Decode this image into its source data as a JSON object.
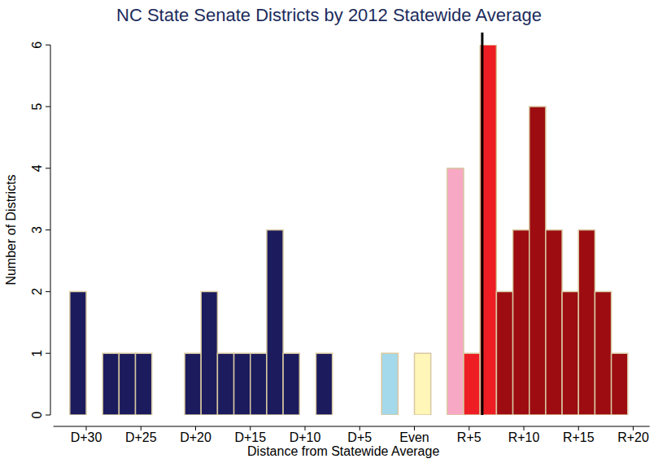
{
  "chart_data": {
    "type": "histogram",
    "title": "NC State Senate Districts by 2012 Statewide Average",
    "x_label": "Distance from Statewide Average",
    "y_label": "Number of Districts",
    "bins": [
      -31.5,
      -30,
      -28.5,
      -27,
      -25.5,
      -24,
      -22.5,
      -21,
      -19.5,
      -18,
      -16.5,
      -15,
      -13.5,
      -12,
      -10.5,
      -9,
      -7.5,
      -6,
      -4.5,
      -3,
      -1.5,
      0,
      1.5,
      3,
      4.5,
      6,
      7.5,
      9,
      10.5,
      12,
      13.5,
      15,
      16.5,
      18,
      19.5
    ],
    "values": [
      2,
      0,
      1,
      1,
      1,
      0,
      0,
      1,
      2,
      1,
      1,
      1,
      3,
      1,
      0,
      1,
      0,
      0,
      0,
      1,
      0,
      1,
      0,
      4,
      1,
      6,
      2,
      3,
      5,
      3,
      2,
      3,
      2,
      1
    ],
    "colors": [
      "#1b1b5e",
      "#1b1b5e",
      "#1b1b5e",
      "#1b1b5e",
      "#1b1b5e",
      "#1b1b5e",
      "#1b1b5e",
      "#1b1b5e",
      "#1b1b5e",
      "#1b1b5e",
      "#1b1b5e",
      "#1b1b5e",
      "#1b1b5e",
      "#1b1b5e",
      "#1b1b5e",
      "#1b1b5e",
      "#1b1b5e",
      "#1b1b5e",
      "#1b1b5e",
      "#a3d9ea",
      "#a3d9ea",
      "#fff6b8",
      "#f7a8c4",
      "#f7a8c4",
      "#ee1d24",
      "#ee1d24",
      "#9c0c10",
      "#9c0c10",
      "#9c0c10",
      "#9c0c10",
      "#9c0c10",
      "#9c0c10",
      "#9c0c10",
      "#9c0c10"
    ],
    "reference_line": 6.2,
    "xlim": [
      -33,
      21.5
    ],
    "xticks": [
      {
        "value": -30,
        "label": "D+30"
      },
      {
        "value": -25,
        "label": "D+25"
      },
      {
        "value": -20,
        "label": "D+20"
      },
      {
        "value": -15,
        "label": "D+15"
      },
      {
        "value": -10,
        "label": "D+10"
      },
      {
        "value": -5,
        "label": "D+5"
      },
      {
        "value": 0,
        "label": "Even"
      },
      {
        "value": 5,
        "label": "R+5"
      },
      {
        "value": 10,
        "label": "R+10"
      },
      {
        "value": 15,
        "label": "R+15"
      },
      {
        "value": 20,
        "label": "R+20"
      }
    ],
    "ylim": [
      0,
      6
    ],
    "yticks": [
      0,
      1,
      2,
      3,
      4,
      5,
      6
    ],
    "grid": false
  }
}
